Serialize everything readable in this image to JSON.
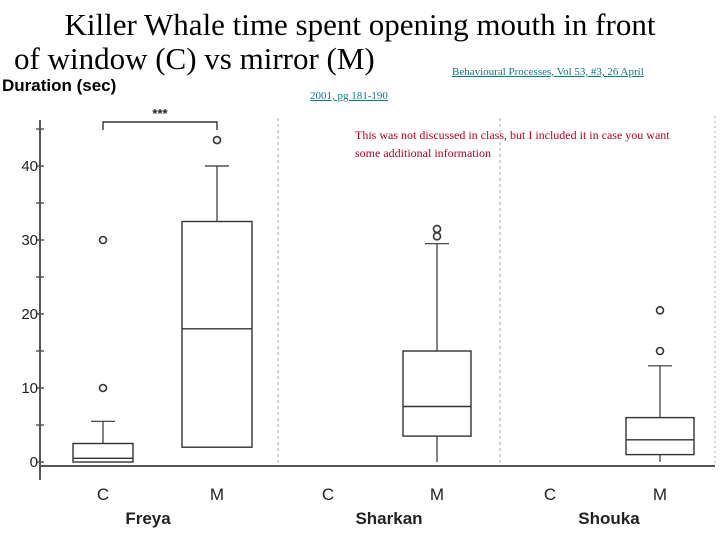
{
  "slide": {
    "title_line1": "Killer Whale time spent opening mouth in front",
    "title_line2": "of window (C) vs mirror (M)",
    "citation_line1": "Behavioural Processes, Vol 53, #3, 26 April",
    "citation_line2": "2001, pg 181-190",
    "note": "This was not discussed in class, but I included it in case you want some additional information"
  },
  "chart_data": {
    "type": "box",
    "ylabel": "Duration (sec)",
    "ylim": [
      0,
      45
    ],
    "yticks": [
      0,
      10,
      20,
      30,
      40
    ],
    "grid": false,
    "significance": {
      "groups": [
        "C",
        "M"
      ],
      "subject": "Freya",
      "label": "***"
    },
    "subjects": [
      {
        "name": "Freya",
        "categories": [
          {
            "label": "C",
            "min": 0,
            "q1": 0,
            "median": 0.5,
            "q3": 2.5,
            "max": 5.5,
            "outliers": [
              10,
              30
            ]
          },
          {
            "label": "M",
            "min": 2,
            "q1": 2,
            "median": 18,
            "q3": 32.5,
            "max": 40,
            "outliers": [
              43.5
            ]
          }
        ]
      },
      {
        "name": "Sharkan",
        "categories": [
          {
            "label": "C"
          },
          {
            "label": "M",
            "min": 0,
            "q1": 3.5,
            "median": 7.5,
            "q3": 15,
            "max": 29.5,
            "outliers": [
              30.5,
              31.5
            ]
          }
        ]
      },
      {
        "name": "Shouka",
        "categories": [
          {
            "label": "C"
          },
          {
            "label": "M",
            "min": 0,
            "q1": 1,
            "median": 3,
            "q3": 6,
            "max": 13,
            "outliers": [
              15,
              20.5
            ]
          }
        ]
      }
    ]
  }
}
